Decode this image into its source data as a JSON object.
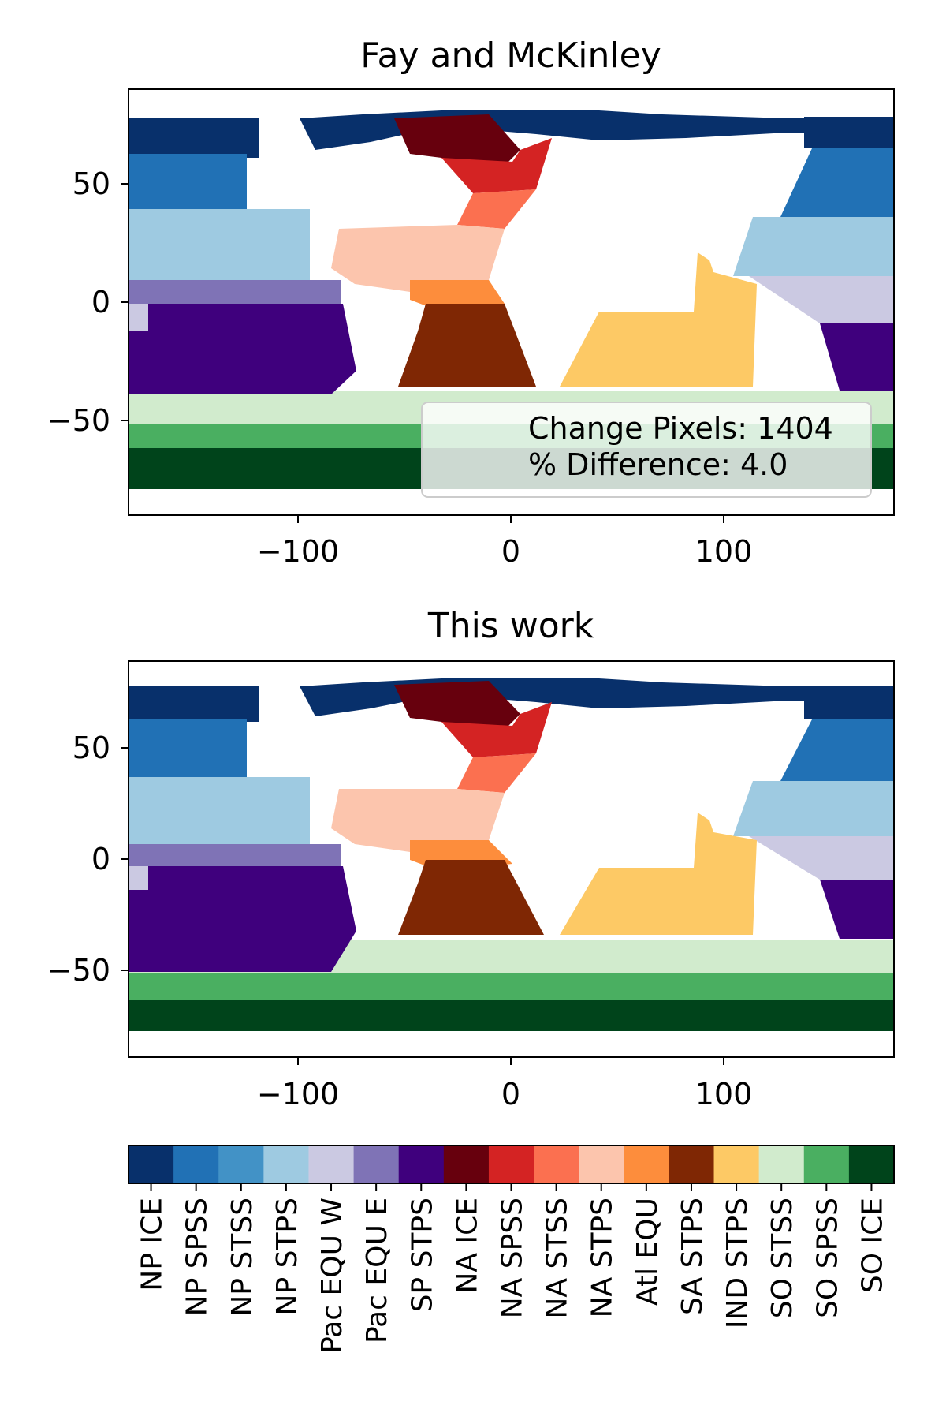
{
  "chart_data": [
    {
      "type": "heatmap",
      "title": "Fay and McKinley",
      "xlim": [
        -180,
        180
      ],
      "ylim": [
        -90,
        90
      ],
      "xticks": [
        -100,
        0,
        100
      ],
      "yticks": [
        50,
        0,
        -50
      ],
      "xtick_labels": [
        "−100",
        "0",
        "100"
      ],
      "ytick_labels": [
        "50",
        "0",
        "−50"
      ],
      "annotation": [
        "Change Pixels: 1404",
        "% Difference: 4.0"
      ],
      "legend_location": "lower-right"
    },
    {
      "type": "heatmap",
      "title": "This work",
      "xlim": [
        -180,
        180
      ],
      "ylim": [
        -90,
        90
      ],
      "xticks": [
        -100,
        0,
        100
      ],
      "yticks": [
        50,
        0,
        -50
      ],
      "xtick_labels": [
        "−100",
        "0",
        "100"
      ],
      "ytick_labels": [
        "50",
        "0",
        "−50"
      ]
    }
  ],
  "colorbar": {
    "orientation": "horizontal",
    "categories": [
      {
        "label": "NP ICE",
        "color": "#08306b"
      },
      {
        "label": "NP SPSS",
        "color": "#2171b5"
      },
      {
        "label": "NP STSS",
        "color": "#4292c6"
      },
      {
        "label": "NP STPS",
        "color": "#9ecae1"
      },
      {
        "label": "Pac EQU W",
        "color": "#cbc9e2"
      },
      {
        "label": "Pac EQU E",
        "color": "#7f73b6"
      },
      {
        "label": "SP STPS",
        "color": "#3f007d"
      },
      {
        "label": "NA ICE",
        "color": "#67000d"
      },
      {
        "label": "NA SPSS",
        "color": "#d42323"
      },
      {
        "label": "NA STSS",
        "color": "#fb7050"
      },
      {
        "label": "NA STPS",
        "color": "#fcc5ad"
      },
      {
        "label": "Atl EQU",
        "color": "#fd8d3c"
      },
      {
        "label": "SA STPS",
        "color": "#7f2704"
      },
      {
        "label": "IND STPS",
        "color": "#fdc965"
      },
      {
        "label": "SO STSS",
        "color": "#d1ebcd"
      },
      {
        "label": "SO SPSS",
        "color": "#4aaf61"
      },
      {
        "label": "SO ICE",
        "color": "#00441b"
      }
    ]
  }
}
